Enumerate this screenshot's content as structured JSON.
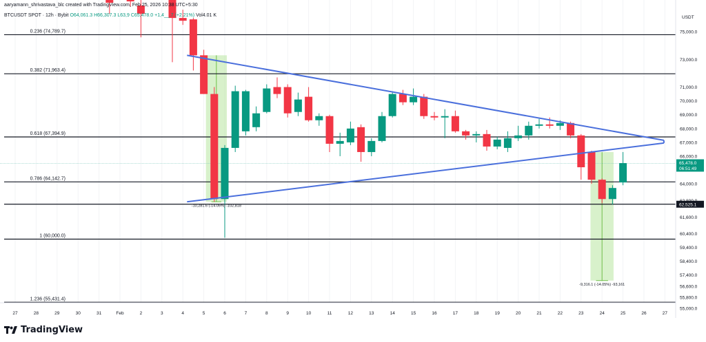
{
  "header": {
    "credit": "aaryamann_shrivastava_blc created with TradingView.com, Feb 25, 2026 10:38 UTC+5:30",
    "symbol": "BTCUSDT SPOT · 12h · Bybit",
    "open": "O64,061.3",
    "high": "H66,307.3",
    "low": "L63,9",
    "close": "C65,478.0",
    "change": "+1,4__.7 (+2.21%)",
    "volume": "Vol4.01 K"
  },
  "currency": "USDT",
  "brand": "TradingView",
  "colors": {
    "up": "#089981",
    "down": "#f23645",
    "trend": "#4a6fdc",
    "measure": "#b8e6a0",
    "last_tag": "#089981",
    "level_tag": "#131722"
  },
  "chart_data": {
    "type": "candlestick",
    "yrange": [
      54300,
      77300
    ],
    "y_ticks": [
      {
        "v": 75000,
        "label": "75,000.0"
      },
      {
        "v": 73000,
        "label": "73,000.0"
      },
      {
        "v": 71000,
        "label": "71,000.0"
      },
      {
        "v": 70000,
        "label": "70,000.0"
      },
      {
        "v": 69000,
        "label": "69,000.0"
      },
      {
        "v": 68000,
        "label": "68,000.0"
      },
      {
        "v": 67000,
        "label": "67,000.0"
      },
      {
        "v": 66000,
        "label": "66,000.0"
      },
      {
        "v": 64000,
        "label": "64,000.0"
      },
      {
        "v": 62800,
        "label": "62,800.0"
      },
      {
        "v": 61600,
        "label": "61,600.0"
      },
      {
        "v": 60400,
        "label": "60,400.0"
      },
      {
        "v": 59400,
        "label": "59,400.0"
      },
      {
        "v": 58400,
        "label": "58,400.0"
      },
      {
        "v": 57400,
        "label": "57,400.0"
      },
      {
        "v": 56600,
        "label": "56,600.0"
      },
      {
        "v": 55800,
        "label": "55,800.0"
      },
      {
        "v": 55000,
        "label": "55,000.0"
      }
    ],
    "x_ticks": [
      {
        "d": -5,
        "label": "27"
      },
      {
        "d": -4,
        "label": "28"
      },
      {
        "d": -3,
        "label": "29"
      },
      {
        "d": -2,
        "label": "30"
      },
      {
        "d": -1,
        "label": "31"
      },
      {
        "d": 0,
        "label": "Feb"
      },
      {
        "d": 1,
        "label": "2"
      },
      {
        "d": 2,
        "label": "3"
      },
      {
        "d": 3,
        "label": "4"
      },
      {
        "d": 4,
        "label": "5"
      },
      {
        "d": 5,
        "label": "6"
      },
      {
        "d": 6,
        "label": "7"
      },
      {
        "d": 7,
        "label": "8"
      },
      {
        "d": 8,
        "label": "9"
      },
      {
        "d": 9,
        "label": "10"
      },
      {
        "d": 10,
        "label": "11"
      },
      {
        "d": 11,
        "label": "12"
      },
      {
        "d": 12,
        "label": "13"
      },
      {
        "d": 13,
        "label": "14"
      },
      {
        "d": 14,
        "label": "15"
      },
      {
        "d": 15,
        "label": "16"
      },
      {
        "d": 16,
        "label": "17"
      },
      {
        "d": 17,
        "label": "18"
      },
      {
        "d": 18,
        "label": "19"
      },
      {
        "d": 19,
        "label": "20"
      },
      {
        "d": 20,
        "label": "21"
      },
      {
        "d": 21,
        "label": "22"
      },
      {
        "d": 22,
        "label": "23"
      },
      {
        "d": 23,
        "label": "24"
      },
      {
        "d": 24,
        "label": "25"
      },
      {
        "d": 25,
        "label": "26"
      },
      {
        "d": 26,
        "label": "27"
      }
    ],
    "fib_levels": [
      {
        "label": "0.236 (74,789.7)",
        "v": 74789.7
      },
      {
        "label": "0.382 (71,963.4)",
        "v": 71963.4
      },
      {
        "label": "0.618 (67,394.9)",
        "v": 67394.9
      },
      {
        "label": "0.786 (64,142.7)",
        "v": 64142.7
      },
      {
        "label": "1 (60,000.0)",
        "v": 60000.0
      },
      {
        "label": "1.236 (55,431.4)",
        "v": 55431.4
      }
    ],
    "level_tag": {
      "v": 62525.1,
      "label": "62,525.1"
    },
    "last_price": {
      "v": 65478.0,
      "label": "65,478.0",
      "countdown": "06:51:49"
    },
    "candles": [
      {
        "d": -0.5,
        "o": 78300,
        "h": 78500,
        "l": 76300,
        "c": 77100
      },
      {
        "d": 0.5,
        "o": 77800,
        "h": 78400,
        "l": 76800,
        "c": 77200
      },
      {
        "d": 1.0,
        "o": 76900,
        "h": 77900,
        "l": 74600,
        "c": 76300
      },
      {
        "d": 2.5,
        "o": 77600,
        "h": 77800,
        "l": 72800,
        "c": 76000
      },
      {
        "d": 3.0,
        "o": 76000,
        "h": 76600,
        "l": 75500,
        "c": 75800
      },
      {
        "d": 3.5,
        "o": 75900,
        "h": 76000,
        "l": 72200,
        "c": 73300
      },
      {
        "d": 4.0,
        "o": 73300,
        "h": 73700,
        "l": 70500,
        "c": 70500
      },
      {
        "d": 4.5,
        "o": 70500,
        "h": 71000,
        "l": 62700,
        "c": 62900
      },
      {
        "d": 5.0,
        "o": 62900,
        "h": 66800,
        "l": 60100,
        "c": 66600
      },
      {
        "d": 5.5,
        "o": 66600,
        "h": 71100,
        "l": 66300,
        "c": 70700
      },
      {
        "d": 6.0,
        "o": 67800,
        "h": 70800,
        "l": 67500,
        "c": 70700
      },
      {
        "d": 6.5,
        "o": 68100,
        "h": 69600,
        "l": 67800,
        "c": 69100
      },
      {
        "d": 7.0,
        "o": 69200,
        "h": 71200,
        "l": 69100,
        "c": 70900
      },
      {
        "d": 7.5,
        "o": 71000,
        "h": 71700,
        "l": 70200,
        "c": 70500
      },
      {
        "d": 8.0,
        "o": 71000,
        "h": 71200,
        "l": 68800,
        "c": 69100
      },
      {
        "d": 8.5,
        "o": 69200,
        "h": 70600,
        "l": 68900,
        "c": 70100
      },
      {
        "d": 9.0,
        "o": 70300,
        "h": 71000,
        "l": 68500,
        "c": 68600
      },
      {
        "d": 9.5,
        "o": 68600,
        "h": 69100,
        "l": 68200,
        "c": 68900
      },
      {
        "d": 10.0,
        "o": 68900,
        "h": 69000,
        "l": 66300,
        "c": 66900
      },
      {
        "d": 10.5,
        "o": 66900,
        "h": 67700,
        "l": 66000,
        "c": 67100
      },
      {
        "d": 11.0,
        "o": 67000,
        "h": 68500,
        "l": 66800,
        "c": 68000
      },
      {
        "d": 11.5,
        "o": 68100,
        "h": 68300,
        "l": 65600,
        "c": 66300
      },
      {
        "d": 12.0,
        "o": 66300,
        "h": 67300,
        "l": 66000,
        "c": 67100
      },
      {
        "d": 12.5,
        "o": 67100,
        "h": 69200,
        "l": 67000,
        "c": 68900
      },
      {
        "d": 13.0,
        "o": 68900,
        "h": 70700,
        "l": 68800,
        "c": 70500
      },
      {
        "d": 13.5,
        "o": 70500,
        "h": 70800,
        "l": 69700,
        "c": 69900
      },
      {
        "d": 14.0,
        "o": 69900,
        "h": 70900,
        "l": 69700,
        "c": 70300
      },
      {
        "d": 14.5,
        "o": 70300,
        "h": 70500,
        "l": 68700,
        "c": 68900
      },
      {
        "d": 15.0,
        "o": 68900,
        "h": 69200,
        "l": 68600,
        "c": 68800
      },
      {
        "d": 15.5,
        "o": 68800,
        "h": 69400,
        "l": 67300,
        "c": 68900
      },
      {
        "d": 16.0,
        "o": 68900,
        "h": 69300,
        "l": 67700,
        "c": 67800
      },
      {
        "d": 16.5,
        "o": 67800,
        "h": 67900,
        "l": 67200,
        "c": 67500
      },
      {
        "d": 17.0,
        "o": 67500,
        "h": 67800,
        "l": 67000,
        "c": 67600
      },
      {
        "d": 17.5,
        "o": 67600,
        "h": 67900,
        "l": 66400,
        "c": 66700
      },
      {
        "d": 18.0,
        "o": 66700,
        "h": 67400,
        "l": 66500,
        "c": 67200
      },
      {
        "d": 18.5,
        "o": 66600,
        "h": 67800,
        "l": 66300,
        "c": 67300
      },
      {
        "d": 19.0,
        "o": 67300,
        "h": 68200,
        "l": 67100,
        "c": 67500
      },
      {
        "d": 19.5,
        "o": 67500,
        "h": 68500,
        "l": 67200,
        "c": 68200
      },
      {
        "d": 20.0,
        "o": 68200,
        "h": 68700,
        "l": 68000,
        "c": 68300
      },
      {
        "d": 20.5,
        "o": 68300,
        "h": 68800,
        "l": 68000,
        "c": 68200
      },
      {
        "d": 21.0,
        "o": 68200,
        "h": 68600,
        "l": 67900,
        "c": 68400
      },
      {
        "d": 21.5,
        "o": 68400,
        "h": 68500,
        "l": 67300,
        "c": 67500
      },
      {
        "d": 22.0,
        "o": 67500,
        "h": 67600,
        "l": 64300,
        "c": 65200
      },
      {
        "d": 22.5,
        "o": 66300,
        "h": 66400,
        "l": 64000,
        "c": 64300
      },
      {
        "d": 23.0,
        "o": 64300,
        "h": 64400,
        "l": 62600,
        "c": 62900
      },
      {
        "d": 23.5,
        "o": 62900,
        "h": 63900,
        "l": 62500,
        "c": 63700
      },
      {
        "d": 24.0,
        "o": 64100,
        "h": 66300,
        "l": 63900,
        "c": 65500
      }
    ],
    "trendlines": [
      {
        "name": "upper",
        "from": {
          "d": 3.2,
          "v": 73300
        },
        "to": {
          "d": 25.95,
          "v": 67150
        }
      },
      {
        "name": "lower",
        "from": {
          "d": 3.2,
          "v": 62700
        },
        "to": {
          "d": 25.95,
          "v": 66950
        }
      }
    ],
    "measures": [
      {
        "d0": 4.1,
        "d1": 5.1,
        "top": 73300,
        "bottom": 62700,
        "label": "-10,281.6 (-14.05%) -102,818",
        "label_at": "bottom"
      },
      {
        "d0": 22.45,
        "d1": 23.55,
        "top": 66300,
        "bottom": 57000,
        "label": "-9,316.1 (-14.05%) -93,161",
        "label_at": "bottom"
      }
    ]
  }
}
